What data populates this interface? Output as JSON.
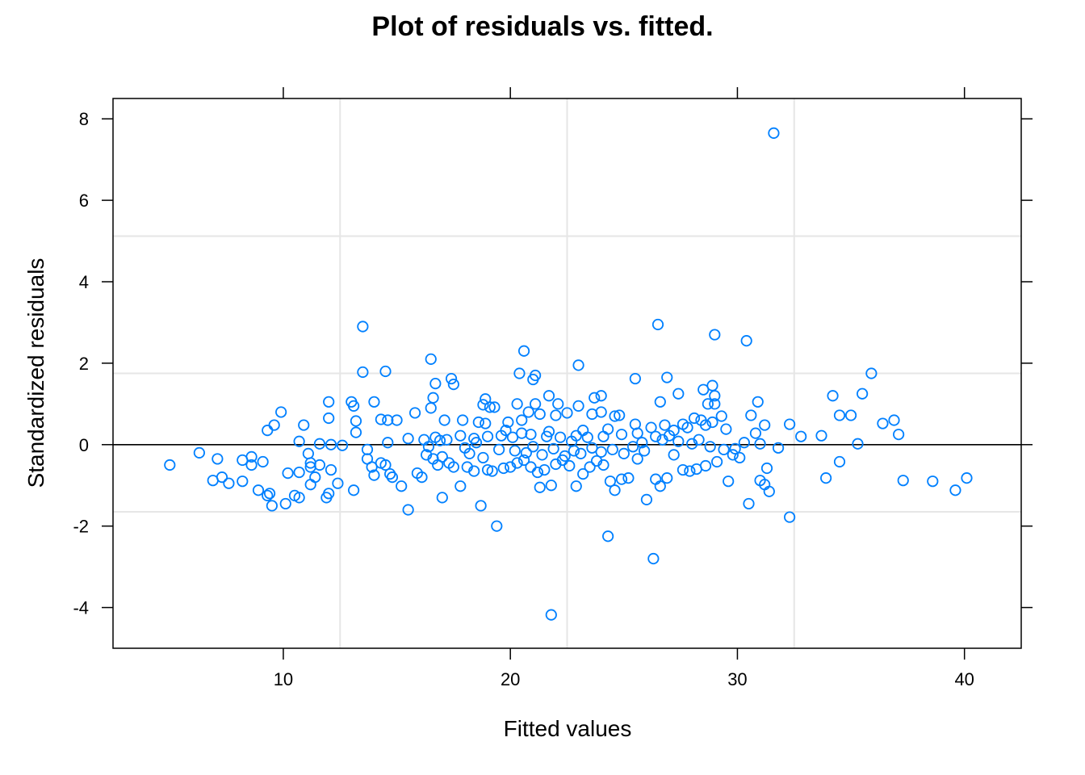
{
  "chart_data": {
    "type": "scatter",
    "title": "Plot of residuals vs. fitted.",
    "xlabel": "Fitted values",
    "ylabel": "Standardized residuals",
    "xlim": [
      2.5,
      42.5
    ],
    "ylim": [
      -5,
      8.5
    ],
    "x_ticks": [
      10,
      20,
      30,
      40
    ],
    "y_ticks": [
      -4,
      -2,
      0,
      2,
      4,
      6,
      8
    ],
    "x_tick_labels": [
      "10",
      "20",
      "30",
      "40"
    ],
    "y_tick_labels": [
      "-4",
      "-2",
      "0",
      "2",
      "4",
      "6",
      "8"
    ],
    "reference_line_y": 0,
    "grid": true,
    "grid_x": [
      12.5,
      22.5,
      32.5
    ],
    "grid_y": [
      -1.65,
      1.75,
      5.12
    ],
    "colors": {
      "points": "#0080ff",
      "grid": "#e6e6e6",
      "axis": "#000000",
      "reference_line": "#000000"
    },
    "marker": "open-circle",
    "points": [
      [
        31.6,
        7.65
      ],
      [
        13.5,
        2.9
      ],
      [
        26.5,
        2.95
      ],
      [
        29.0,
        2.7
      ],
      [
        30.4,
        2.55
      ],
      [
        20.6,
        2.3
      ],
      [
        16.5,
        2.1
      ],
      [
        23.0,
        1.95
      ],
      [
        13.5,
        1.78
      ],
      [
        14.5,
        1.8
      ],
      [
        20.4,
        1.75
      ],
      [
        21.1,
        1.7
      ],
      [
        21.0,
        1.6
      ],
      [
        35.9,
        1.75
      ],
      [
        17.4,
        1.62
      ],
      [
        17.5,
        1.48
      ],
      [
        25.5,
        1.62
      ],
      [
        26.9,
        1.65
      ],
      [
        16.7,
        1.5
      ],
      [
        28.5,
        1.35
      ],
      [
        28.9,
        1.45
      ],
      [
        27.4,
        1.25
      ],
      [
        35.5,
        1.25
      ],
      [
        34.2,
        1.2
      ],
      [
        29.0,
        1.2
      ],
      [
        24.0,
        1.2
      ],
      [
        21.7,
        1.2
      ],
      [
        23.7,
        1.15
      ],
      [
        16.6,
        1.15
      ],
      [
        18.9,
        1.12
      ],
      [
        12.0,
        1.05
      ],
      [
        13.0,
        1.05
      ],
      [
        14.0,
        1.05
      ],
      [
        20.3,
        1.0
      ],
      [
        21.1,
        1.0
      ],
      [
        22.1,
        1.0
      ],
      [
        23.0,
        0.95
      ],
      [
        26.6,
        1.05
      ],
      [
        28.7,
        1.0
      ],
      [
        29.0,
        1.0
      ],
      [
        30.9,
        1.05
      ],
      [
        18.8,
        0.98
      ],
      [
        19.1,
        0.92
      ],
      [
        19.3,
        0.92
      ],
      [
        16.5,
        0.9
      ],
      [
        13.1,
        0.95
      ],
      [
        9.9,
        0.8
      ],
      [
        12.0,
        0.65
      ],
      [
        13.2,
        0.58
      ],
      [
        14.3,
        0.62
      ],
      [
        14.6,
        0.6
      ],
      [
        15.0,
        0.6
      ],
      [
        15.8,
        0.78
      ],
      [
        17.1,
        0.6
      ],
      [
        17.9,
        0.6
      ],
      [
        18.6,
        0.55
      ],
      [
        18.9,
        0.52
      ],
      [
        19.9,
        0.55
      ],
      [
        20.5,
        0.6
      ],
      [
        20.8,
        0.8
      ],
      [
        21.3,
        0.75
      ],
      [
        22.0,
        0.72
      ],
      [
        22.5,
        0.78
      ],
      [
        23.6,
        0.75
      ],
      [
        24.0,
        0.8
      ],
      [
        24.6,
        0.7
      ],
      [
        24.8,
        0.72
      ],
      [
        25.5,
        0.5
      ],
      [
        26.2,
        0.42
      ],
      [
        26.8,
        0.48
      ],
      [
        27.6,
        0.5
      ],
      [
        28.1,
        0.65
      ],
      [
        28.4,
        0.6
      ],
      [
        28.9,
        0.55
      ],
      [
        29.3,
        0.7
      ],
      [
        30.6,
        0.72
      ],
      [
        31.2,
        0.48
      ],
      [
        32.3,
        0.5
      ],
      [
        34.5,
        0.72
      ],
      [
        35.0,
        0.72
      ],
      [
        36.4,
        0.52
      ],
      [
        36.9,
        0.6
      ],
      [
        37.1,
        0.25
      ],
      [
        33.7,
        0.22
      ],
      [
        32.8,
        0.2
      ],
      [
        30.8,
        0.28
      ],
      [
        29.5,
        0.38
      ],
      [
        28.6,
        0.48
      ],
      [
        27.8,
        0.42
      ],
      [
        27.2,
        0.35
      ],
      [
        26.4,
        0.2
      ],
      [
        25.6,
        0.28
      ],
      [
        24.9,
        0.25
      ],
      [
        24.1,
        0.2
      ],
      [
        23.4,
        0.18
      ],
      [
        22.9,
        0.22
      ],
      [
        22.2,
        0.18
      ],
      [
        21.6,
        0.2
      ],
      [
        20.9,
        0.25
      ],
      [
        20.1,
        0.18
      ],
      [
        19.6,
        0.22
      ],
      [
        19.0,
        0.2
      ],
      [
        18.4,
        0.15
      ],
      [
        17.8,
        0.22
      ],
      [
        17.2,
        0.12
      ],
      [
        16.7,
        0.18
      ],
      [
        16.2,
        0.12
      ],
      [
        15.5,
        0.15
      ],
      [
        14.6,
        0.05
      ],
      [
        13.7,
        -0.12
      ],
      [
        12.6,
        -0.02
      ],
      [
        12.1,
        0.0
      ],
      [
        11.6,
        0.02
      ],
      [
        10.7,
        0.08
      ],
      [
        9.3,
        0.35
      ],
      [
        9.6,
        0.48
      ],
      [
        10.9,
        0.48
      ],
      [
        11.1,
        -0.22
      ],
      [
        11.2,
        -0.45
      ],
      [
        11.6,
        -0.5
      ],
      [
        11.4,
        -0.8
      ],
      [
        11.2,
        -0.98
      ],
      [
        10.5,
        -1.25
      ],
      [
        10.7,
        -1.3
      ],
      [
        9.4,
        -1.2
      ],
      [
        9.3,
        -1.25
      ],
      [
        9.5,
        -1.5
      ],
      [
        10.1,
        -1.45
      ],
      [
        8.9,
        -1.12
      ],
      [
        8.2,
        -0.9
      ],
      [
        7.6,
        -0.95
      ],
      [
        7.3,
        -0.8
      ],
      [
        6.9,
        -0.88
      ],
      [
        7.1,
        -0.35
      ],
      [
        6.3,
        -0.2
      ],
      [
        5.0,
        -0.5
      ],
      [
        8.2,
        -0.38
      ],
      [
        8.6,
        -0.3
      ],
      [
        8.6,
        -0.5
      ],
      [
        9.1,
        -0.42
      ],
      [
        10.2,
        -0.7
      ],
      [
        10.7,
        -0.68
      ],
      [
        11.2,
        -0.55
      ],
      [
        12.1,
        -0.62
      ],
      [
        11.9,
        -1.3
      ],
      [
        12.0,
        -1.2
      ],
      [
        12.4,
        -0.95
      ],
      [
        13.1,
        -1.12
      ],
      [
        13.2,
        0.3
      ],
      [
        13.7,
        -0.35
      ],
      [
        13.9,
        -0.55
      ],
      [
        14.0,
        -0.75
      ],
      [
        14.3,
        -0.45
      ],
      [
        14.5,
        -0.5
      ],
      [
        14.7,
        -0.72
      ],
      [
        14.8,
        -0.8
      ],
      [
        15.2,
        -1.02
      ],
      [
        15.5,
        -1.6
      ],
      [
        15.9,
        -0.7
      ],
      [
        16.1,
        -0.8
      ],
      [
        16.3,
        -0.25
      ],
      [
        16.4,
        -0.05
      ],
      [
        16.6,
        -0.35
      ],
      [
        16.8,
        -0.5
      ],
      [
        17.0,
        -1.3
      ],
      [
        17.3,
        -0.45
      ],
      [
        17.5,
        -0.55
      ],
      [
        17.8,
        -1.02
      ],
      [
        18.1,
        -0.55
      ],
      [
        18.4,
        -0.65
      ],
      [
        18.7,
        -1.5
      ],
      [
        19.0,
        -0.62
      ],
      [
        19.2,
        -0.65
      ],
      [
        19.4,
        -2.0
      ],
      [
        19.7,
        -0.58
      ],
      [
        20.0,
        -0.55
      ],
      [
        20.3,
        -0.45
      ],
      [
        20.6,
        -0.38
      ],
      [
        20.9,
        -0.55
      ],
      [
        21.2,
        -0.68
      ],
      [
        21.3,
        -1.05
      ],
      [
        21.5,
        -0.62
      ],
      [
        21.8,
        -1.0
      ],
      [
        22.0,
        -0.48
      ],
      [
        22.3,
        -0.38
      ],
      [
        22.6,
        -0.52
      ],
      [
        22.9,
        -1.02
      ],
      [
        23.2,
        -0.72
      ],
      [
        23.5,
        -0.55
      ],
      [
        23.8,
        -0.4
      ],
      [
        24.1,
        -0.5
      ],
      [
        24.4,
        -0.9
      ],
      [
        24.6,
        -1.12
      ],
      [
        24.9,
        -0.85
      ],
      [
        25.2,
        -0.82
      ],
      [
        25.6,
        -0.35
      ],
      [
        26.0,
        -1.35
      ],
      [
        26.3,
        -2.8
      ],
      [
        26.4,
        -0.85
      ],
      [
        26.6,
        -1.02
      ],
      [
        26.9,
        -0.82
      ],
      [
        27.2,
        -0.25
      ],
      [
        27.6,
        -0.62
      ],
      [
        27.9,
        -0.65
      ],
      [
        28.2,
        -0.6
      ],
      [
        28.6,
        -0.52
      ],
      [
        29.1,
        -0.42
      ],
      [
        29.6,
        -0.9
      ],
      [
        30.1,
        -0.32
      ],
      [
        30.5,
        -1.45
      ],
      [
        31.0,
        -0.88
      ],
      [
        31.2,
        -0.98
      ],
      [
        31.3,
        -0.58
      ],
      [
        31.4,
        -1.15
      ],
      [
        32.3,
        -1.78
      ],
      [
        33.9,
        -0.82
      ],
      [
        34.5,
        -0.42
      ],
      [
        35.3,
        0.02
      ],
      [
        37.3,
        -0.88
      ],
      [
        38.6,
        -0.9
      ],
      [
        39.6,
        -1.12
      ],
      [
        40.1,
        -0.82
      ],
      [
        24.3,
        -2.25
      ],
      [
        21.8,
        -4.18
      ],
      [
        18.0,
        -0.08
      ],
      [
        18.5,
        0.05
      ],
      [
        19.5,
        -0.12
      ],
      [
        20.2,
        -0.15
      ],
      [
        20.7,
        -0.2
      ],
      [
        21.0,
        -0.05
      ],
      [
        21.4,
        -0.25
      ],
      [
        21.9,
        -0.1
      ],
      [
        22.4,
        -0.28
      ],
      [
        22.8,
        -0.15
      ],
      [
        23.1,
        -0.22
      ],
      [
        23.6,
        -0.08
      ],
      [
        24.0,
        -0.18
      ],
      [
        24.5,
        -0.12
      ],
      [
        25.0,
        -0.22
      ],
      [
        25.4,
        -0.05
      ],
      [
        25.9,
        -0.15
      ],
      [
        26.7,
        0.12
      ],
      [
        27.4,
        0.08
      ],
      [
        28.0,
        0.02
      ],
      [
        28.8,
        -0.05
      ],
      [
        29.4,
        -0.12
      ],
      [
        29.9,
        -0.1
      ],
      [
        30.3,
        0.05
      ],
      [
        31.0,
        0.02
      ],
      [
        31.8,
        -0.08
      ],
      [
        19.8,
        0.35
      ],
      [
        20.5,
        0.28
      ],
      [
        21.7,
        0.32
      ],
      [
        23.2,
        0.35
      ],
      [
        24.3,
        0.38
      ],
      [
        27.0,
        0.22
      ],
      [
        28.3,
        0.12
      ],
      [
        29.8,
        -0.25
      ],
      [
        18.2,
        -0.22
      ],
      [
        17.0,
        -0.3
      ],
      [
        16.9,
        0.1
      ],
      [
        18.8,
        -0.32
      ],
      [
        22.7,
        0.08
      ],
      [
        25.8,
        0.05
      ]
    ]
  }
}
